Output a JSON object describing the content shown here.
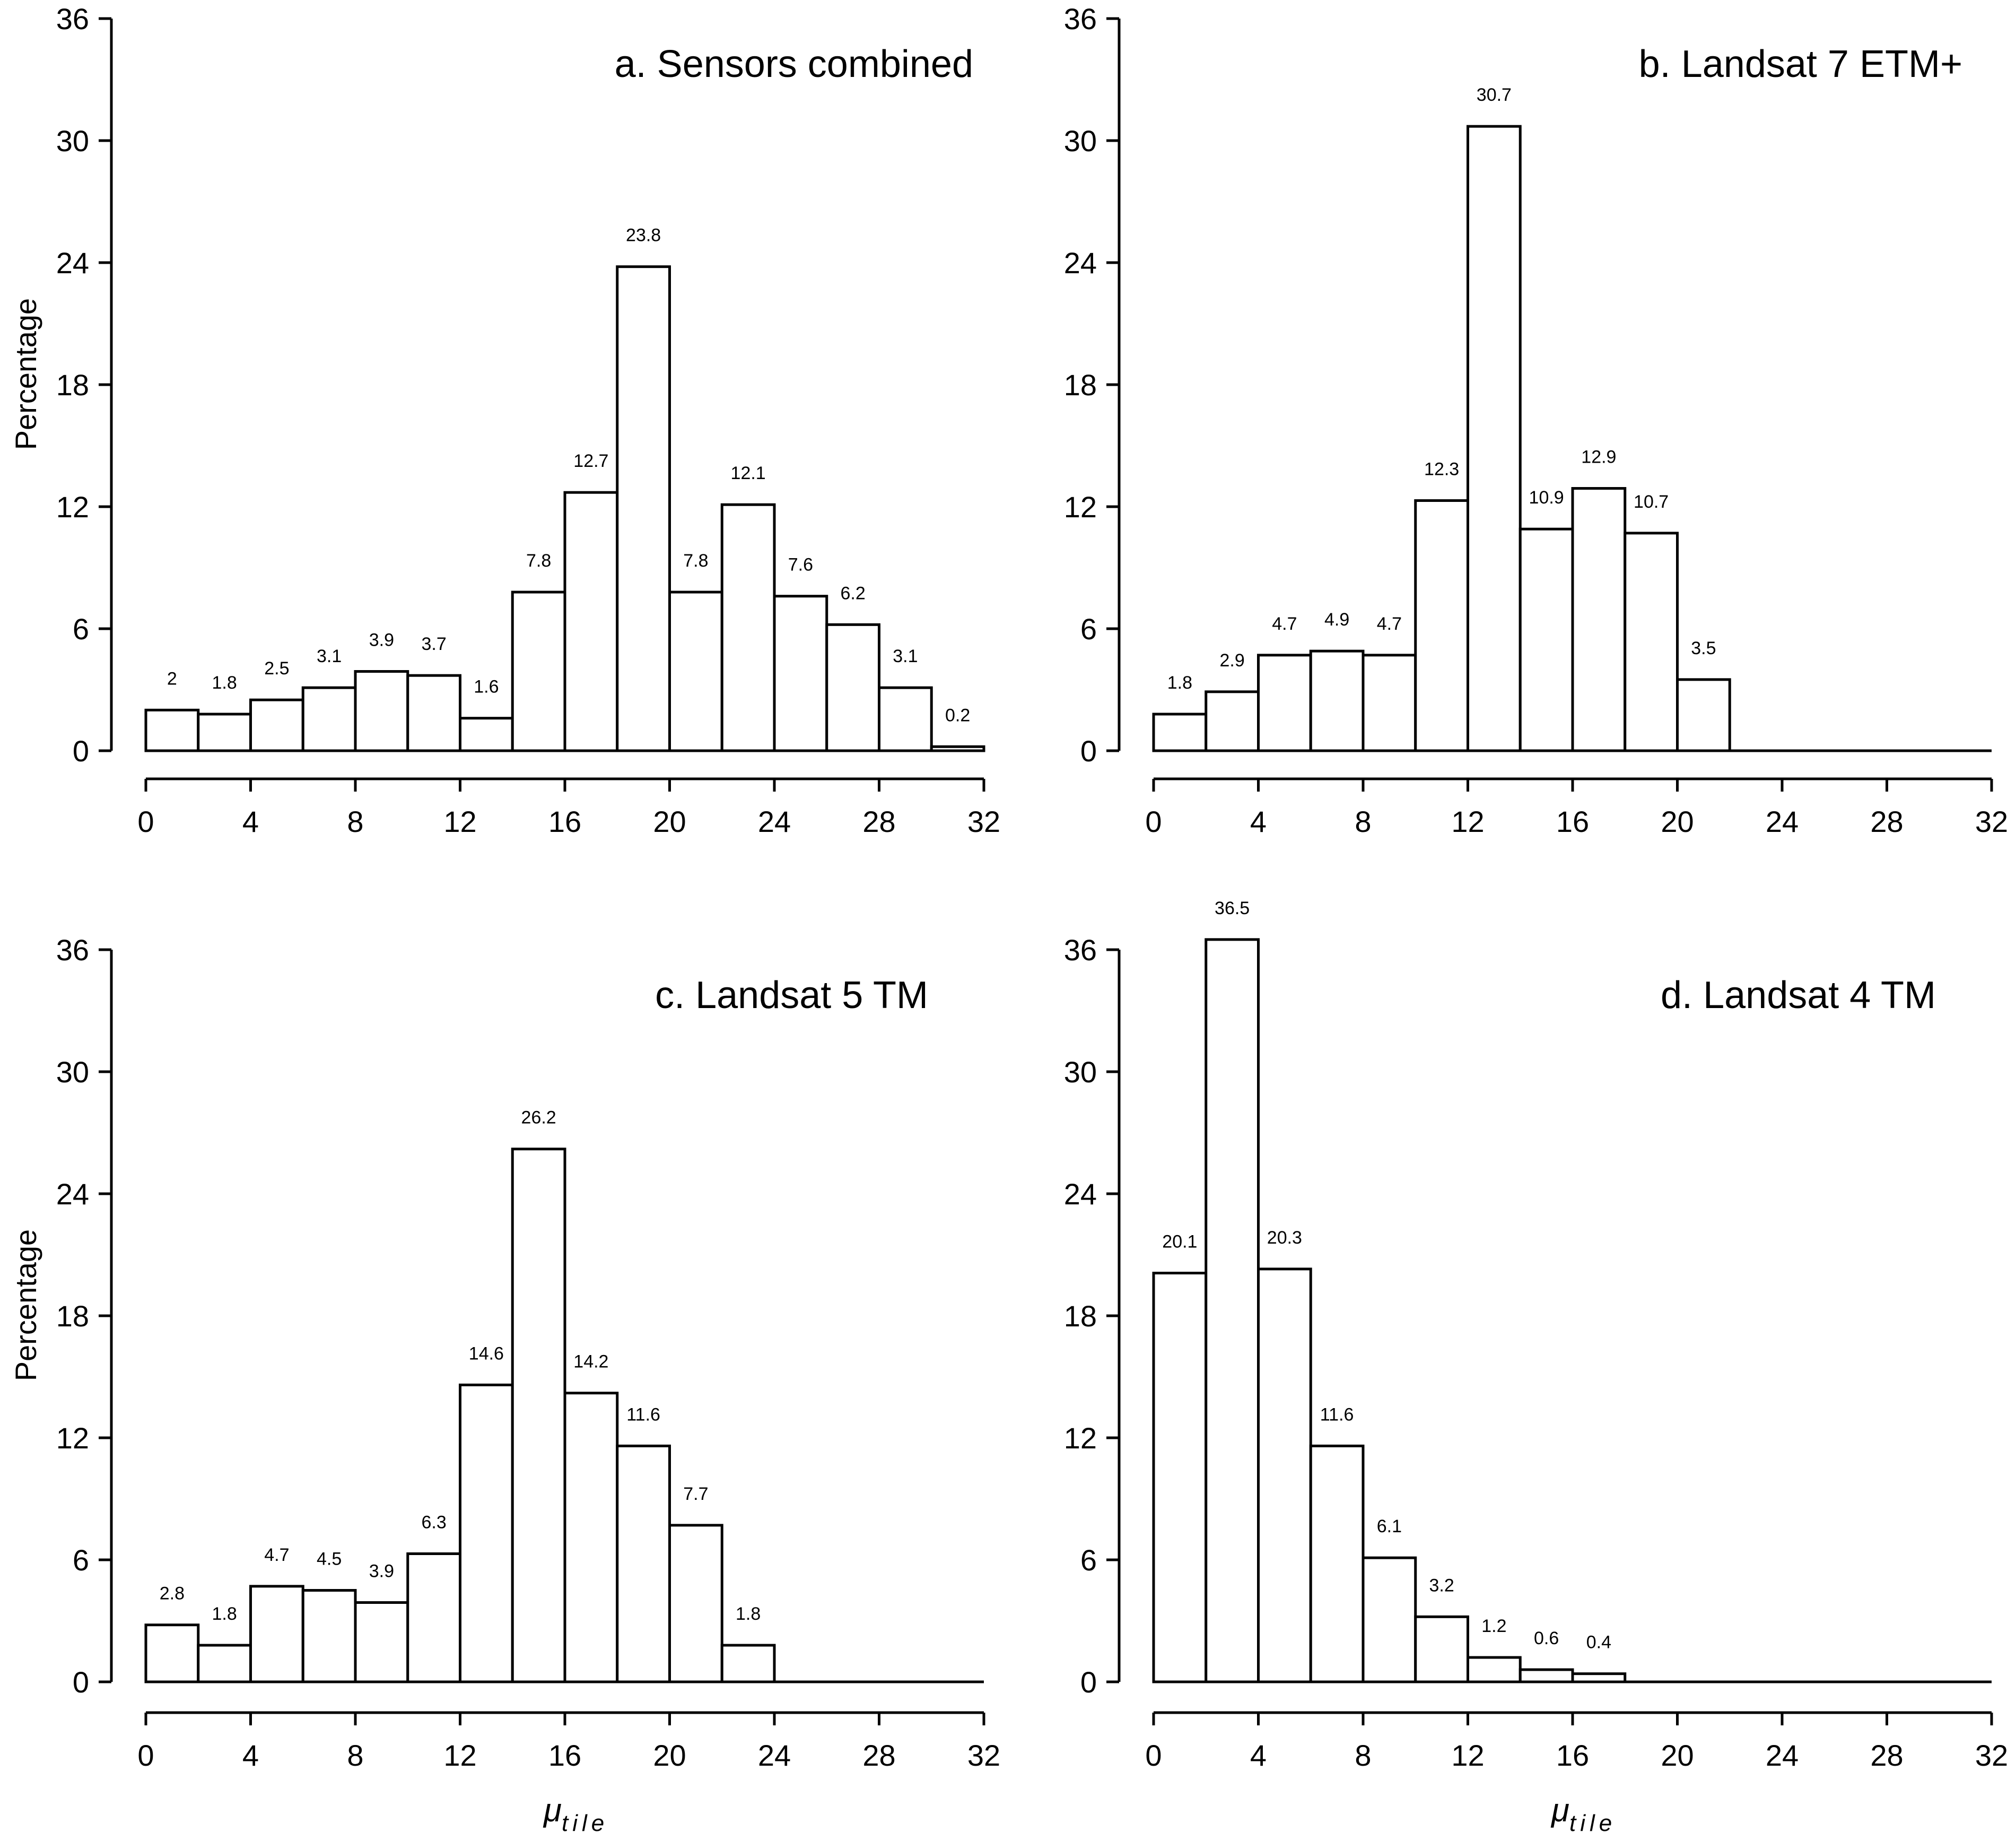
{
  "chart_data": [
    {
      "type": "bar",
      "title": "a. Sensors combined",
      "ylabel": "Percentage",
      "xlabel": "",
      "bin_width": 2,
      "bin_starts": [
        0,
        2,
        4,
        6,
        8,
        10,
        12,
        14,
        16,
        18,
        20,
        22,
        24,
        26,
        28,
        30
      ],
      "values": [
        2,
        1.8,
        2.5,
        3.1,
        3.9,
        3.7,
        1.6,
        7.8,
        12.7,
        23.8,
        7.8,
        12.1,
        7.6,
        6.2,
        3.1,
        0.2
      ],
      "labels": [
        "2",
        "1.8",
        "2.5",
        "3.1",
        "3.9",
        "3.7",
        "1.6",
        "7.8",
        "12.7",
        "23.8",
        "7.8",
        "12.1",
        "7.6",
        "6.2",
        "3.1",
        "0.2"
      ],
      "xlim": [
        0,
        32
      ],
      "ylim": [
        0,
        36
      ],
      "xticks": [
        "0",
        "4",
        "8",
        "12",
        "16",
        "20",
        "24",
        "28",
        "32"
      ],
      "yticks": [
        "0",
        "6",
        "12",
        "18",
        "24",
        "30",
        "36"
      ]
    },
    {
      "type": "bar",
      "title": "b. Landsat 7 ETM+",
      "ylabel": "",
      "xlabel": "",
      "bin_width": 2,
      "bin_starts": [
        0,
        2,
        4,
        6,
        8,
        10,
        12,
        14,
        16,
        18,
        20
      ],
      "values": [
        1.8,
        2.9,
        4.7,
        4.9,
        4.7,
        12.3,
        30.7,
        10.9,
        12.9,
        10.7,
        3.5
      ],
      "labels": [
        "1.8",
        "2.9",
        "4.7",
        "4.9",
        "4.7",
        "12.3",
        "30.7",
        "10.9",
        "12.9",
        "10.7",
        "3.5"
      ],
      "xlim": [
        0,
        32
      ],
      "ylim": [
        0,
        36
      ],
      "xticks": [
        "0",
        "4",
        "8",
        "12",
        "16",
        "20",
        "24",
        "28",
        "32"
      ],
      "yticks": [
        "0",
        "6",
        "12",
        "18",
        "24",
        "30",
        "36"
      ]
    },
    {
      "type": "bar",
      "title": "c. Landsat 5 TM",
      "ylabel": "Percentage",
      "xlabel": "μtile",
      "bin_width": 2,
      "bin_starts": [
        0,
        2,
        4,
        6,
        8,
        10,
        12,
        14,
        16,
        18,
        20,
        22
      ],
      "values": [
        2.8,
        1.8,
        4.7,
        4.5,
        3.9,
        6.3,
        14.6,
        26.2,
        14.2,
        11.6,
        7.7,
        1.8
      ],
      "labels": [
        "2.8",
        "1.8",
        "4.7",
        "4.5",
        "3.9",
        "6.3",
        "14.6",
        "26.2",
        "14.2",
        "11.6",
        "7.7",
        "1.8"
      ],
      "xlim": [
        0,
        32
      ],
      "ylim": [
        0,
        36
      ],
      "xticks": [
        "0",
        "4",
        "8",
        "12",
        "16",
        "20",
        "24",
        "28",
        "32"
      ],
      "yticks": [
        "0",
        "6",
        "12",
        "18",
        "24",
        "30",
        "36"
      ]
    },
    {
      "type": "bar",
      "title": "d. Landsat 4 TM",
      "ylabel": "",
      "xlabel": "μtile",
      "bin_width": 2,
      "bin_starts": [
        0,
        2,
        4,
        6,
        8,
        10,
        12,
        14,
        16
      ],
      "values": [
        20.1,
        36.5,
        20.3,
        11.6,
        6.1,
        3.2,
        1.2,
        0.6,
        0.4
      ],
      "labels": [
        "20.1",
        "36.5",
        "20.3",
        "11.6",
        "6.1",
        "3.2",
        "1.2",
        "0.6",
        "0.4"
      ],
      "xlim": [
        0,
        32
      ],
      "ylim": [
        0,
        36
      ],
      "xticks": [
        "0",
        "4",
        "8",
        "12",
        "16",
        "20",
        "24",
        "28",
        "32"
      ],
      "yticks": [
        "0",
        "6",
        "12",
        "18",
        "24",
        "30",
        "36"
      ]
    }
  ]
}
